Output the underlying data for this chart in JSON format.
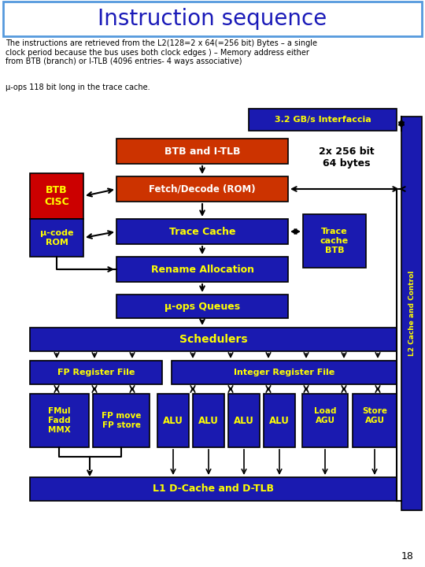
{
  "title": "Instruction sequence",
  "title_color": "#1a1ab8",
  "title_border_color": "#5599dd",
  "body_text": "The instructions are retrieved from the L2(128=2 x 64(=256 bit) Bytes – a single\nclock period because the bus uses both clock edges ) – Memory address either\nfrom BTB (branch) or I-TLB (4096 entries- 4 ways associative)",
  "mu_ops_text": "μ-ops 118 bit long in the trace cache.",
  "bg_color": "#ffffff",
  "dark_blue": "#1a1ab0",
  "orange_red": "#cc3300",
  "dark_red": "#cc0000",
  "yellow_text": "#ffff00",
  "white_text": "#ffffff",
  "black_text": "#000000"
}
